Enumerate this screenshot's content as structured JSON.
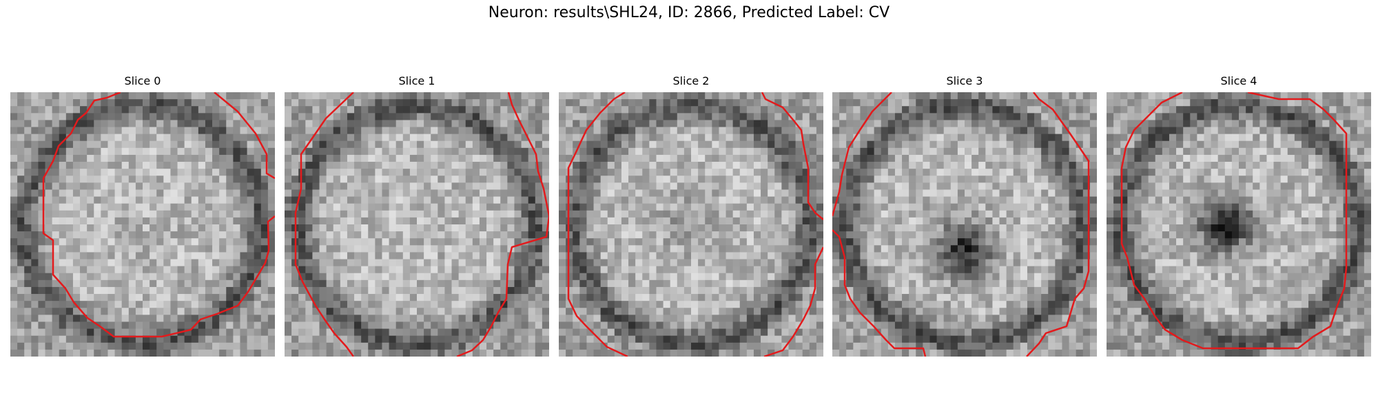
{
  "figure": {
    "title": "Neuron: results\\SHL24, ID: 2866, Predicted Label: CV",
    "contour_color": "#e31a1c",
    "colormap": "gray",
    "grid_size": 38
  },
  "slices": [
    {
      "label": "Slice 0"
    },
    {
      "label": "Slice 1"
    },
    {
      "label": "Slice 2"
    },
    {
      "label": "Slice 3"
    },
    {
      "label": "Slice 4"
    }
  ]
}
